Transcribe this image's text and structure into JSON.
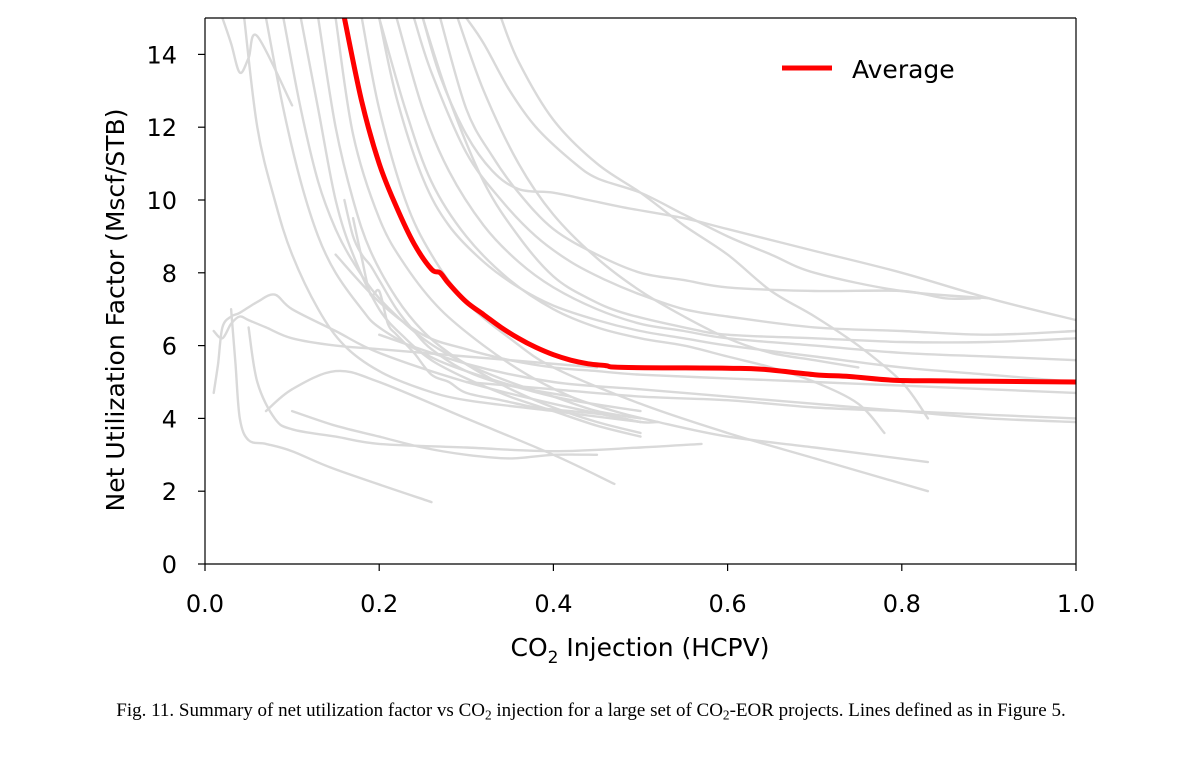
{
  "chart_data": {
    "type": "line",
    "title": "",
    "xlabel_main": "CO",
    "xlabel_sub": "2",
    "xlabel_rest": " Injection (HCPV)",
    "ylabel": "Net Utilization Factor (Mscf/STB)",
    "xlim": [
      0.0,
      1.0
    ],
    "ylim": [
      0,
      15
    ],
    "x_ticks": [
      "0.0",
      "0.2",
      "0.4",
      "0.6",
      "0.8",
      "1.0"
    ],
    "y_ticks": [
      "0",
      "2",
      "4",
      "6",
      "8",
      "10",
      "12",
      "14"
    ],
    "legend": [
      {
        "name": "Average",
        "color": "#ff0000"
      }
    ],
    "average": {
      "name": "Average",
      "color": "#ff0000",
      "x": [
        0.16,
        0.18,
        0.2,
        0.22,
        0.24,
        0.26,
        0.27,
        0.28,
        0.3,
        0.32,
        0.34,
        0.36,
        0.38,
        0.4,
        0.42,
        0.44,
        0.46,
        0.48,
        0.6,
        0.64,
        0.7,
        0.74,
        0.79,
        0.85,
        0.9,
        1.0
      ],
      "y": [
        15.0,
        12.7,
        11.0,
        9.8,
        8.8,
        8.1,
        8.0,
        7.7,
        7.2,
        6.85,
        6.5,
        6.2,
        5.95,
        5.75,
        5.6,
        5.5,
        5.45,
        5.4,
        5.38,
        5.35,
        5.2,
        5.15,
        5.05,
        5.03,
        5.02,
        5.0
      ]
    },
    "series_color": "#d9d9d9",
    "series": [
      {
        "x": [
          0.03,
          0.035,
          0.04,
          0.05,
          0.07,
          0.1,
          0.15,
          0.26
        ],
        "y": [
          7.0,
          5.5,
          4.0,
          3.4,
          3.3,
          3.1,
          2.6,
          1.7
        ]
      },
      {
        "x": [
          0.01,
          0.02,
          0.03,
          0.04,
          0.05,
          0.07,
          0.1,
          0.15,
          0.2,
          0.3,
          0.45
        ],
        "y": [
          6.4,
          6.2,
          6.6,
          6.8,
          6.7,
          6.5,
          6.2,
          6.0,
          5.9,
          5.7,
          5.4
        ]
      },
      {
        "x": [
          0.01,
          0.015,
          0.02,
          0.03,
          0.04,
          0.06,
          0.08,
          0.1,
          0.15,
          0.2,
          0.3,
          0.4,
          0.5
        ],
        "y": [
          4.7,
          5.5,
          6.5,
          6.8,
          6.9,
          7.2,
          7.4,
          7.0,
          6.4,
          5.8,
          5.0,
          4.4,
          3.9
        ]
      },
      {
        "x": [
          0.07,
          0.1,
          0.15,
          0.2,
          0.3,
          0.4,
          0.47
        ],
        "y": [
          4.2,
          4.8,
          5.3,
          5.0,
          4.0,
          3.0,
          2.2
        ]
      },
      {
        "x": [
          0.05,
          0.06,
          0.08,
          0.1,
          0.15,
          0.2,
          0.3,
          0.4,
          0.5,
          0.57
        ],
        "y": [
          6.5,
          5.0,
          4.0,
          3.7,
          3.5,
          3.3,
          3.2,
          3.1,
          3.2,
          3.3
        ]
      },
      {
        "x": [
          0.02,
          0.03,
          0.04,
          0.05,
          0.06,
          0.1
        ],
        "y": [
          15,
          14.3,
          13.5,
          13.9,
          14.5,
          12.6
        ]
      },
      {
        "x": [
          0.045,
          0.06,
          0.08,
          0.1,
          0.13,
          0.16,
          0.2,
          0.25,
          0.3,
          0.4,
          0.5
        ],
        "y": [
          15,
          12.0,
          10.0,
          8.5,
          7.0,
          6.0,
          5.3,
          4.8,
          4.5,
          4.2,
          3.9
        ]
      },
      {
        "x": [
          0.07,
          0.09,
          0.11,
          0.13,
          0.15,
          0.18,
          0.2,
          0.25,
          0.3,
          0.4,
          0.5
        ],
        "y": [
          15,
          12.5,
          10.5,
          9.0,
          8.0,
          7.0,
          6.5,
          5.8,
          5.3,
          4.6,
          4.2
        ]
      },
      {
        "x": [
          0.09,
          0.11,
          0.13,
          0.15,
          0.17,
          0.2,
          0.25,
          0.3,
          0.35,
          0.4,
          0.45,
          0.5
        ],
        "y": [
          15,
          12.5,
          10.5,
          9.2,
          8.3,
          7.3,
          6.2,
          5.5,
          5.0,
          4.6,
          4.2,
          4.0
        ]
      },
      {
        "x": [
          0.11,
          0.13,
          0.15,
          0.17,
          0.2,
          0.23,
          0.26,
          0.3,
          0.35,
          0.4,
          0.45,
          0.5
        ],
        "y": [
          15,
          12.5,
          10.0,
          8.5,
          7.0,
          6.2,
          5.6,
          5.1,
          4.6,
          4.2,
          3.8,
          3.5
        ]
      },
      {
        "x": [
          0.13,
          0.15,
          0.17,
          0.19,
          0.22,
          0.25,
          0.28,
          0.32,
          0.36,
          0.4,
          0.45,
          0.5
        ],
        "y": [
          15,
          12.0,
          10.0,
          8.6,
          7.3,
          6.4,
          5.8,
          5.2,
          4.7,
          4.3,
          3.9,
          3.6
        ]
      },
      {
        "x": [
          0.17,
          0.18,
          0.19,
          0.2,
          0.21,
          0.22,
          0.24,
          0.26,
          0.28,
          0.3,
          0.34,
          0.38,
          0.42,
          0.46,
          0.5,
          0.52
        ],
        "y": [
          9.5,
          8.4,
          7.4,
          7.5,
          6.6,
          6.3,
          5.8,
          5.2,
          5.0,
          4.7,
          4.5,
          4.3,
          4.2,
          4.1,
          3.9,
          3.9
        ]
      },
      {
        "x": [
          0.16,
          0.17,
          0.18,
          0.19,
          0.2,
          0.22,
          0.24,
          0.26,
          0.3,
          0.35,
          0.42
        ],
        "y": [
          10.0,
          9.0,
          8.5,
          8.2,
          7.8,
          7.0,
          6.4,
          5.9,
          5.3,
          4.9,
          4.6
        ]
      },
      {
        "x": [
          0.15,
          0.17,
          0.2,
          0.23,
          0.27,
          0.32,
          0.37,
          0.42,
          0.47,
          0.52,
          0.6,
          0.7,
          0.83
        ],
        "y": [
          15,
          11.8,
          9.5,
          8.2,
          7.0,
          6.0,
          5.2,
          4.6,
          4.2,
          3.9,
          3.5,
          3.2,
          2.8
        ]
      },
      {
        "x": [
          0.18,
          0.2,
          0.23,
          0.26,
          0.3,
          0.35,
          0.4,
          0.5,
          0.6,
          0.7,
          0.83
        ],
        "y": [
          15,
          12.5,
          10.0,
          8.5,
          7.2,
          6.2,
          5.4,
          4.4,
          3.6,
          2.9,
          2.0
        ]
      },
      {
        "x": [
          0.2,
          0.22,
          0.25,
          0.28,
          0.32,
          0.36,
          0.4,
          0.45,
          0.5,
          0.55,
          0.6,
          0.7,
          0.8,
          0.9,
          1.0
        ],
        "y": [
          15,
          12.8,
          10.6,
          9.3,
          8.3,
          7.6,
          7.1,
          6.7,
          6.4,
          6.2,
          6.0,
          5.7,
          5.4,
          5.2,
          5.0
        ]
      },
      {
        "x": [
          0.22,
          0.25,
          0.28,
          0.32,
          0.36,
          0.4,
          0.45,
          0.5,
          0.55,
          0.6,
          0.7,
          0.8,
          0.9,
          1.0
        ],
        "y": [
          15,
          12.5,
          10.8,
          9.3,
          8.3,
          7.6,
          7.0,
          6.6,
          6.4,
          6.2,
          6.0,
          5.8,
          5.7,
          5.6
        ]
      },
      {
        "x": [
          0.24,
          0.26,
          0.3,
          0.34,
          0.38,
          0.42,
          0.46,
          0.5,
          0.55,
          0.6,
          0.7,
          0.8,
          0.9,
          1.0
        ],
        "y": [
          15,
          13.5,
          11.3,
          10.0,
          9.0,
          8.3,
          7.8,
          7.4,
          7.0,
          6.8,
          6.5,
          6.4,
          6.3,
          6.4
        ]
      },
      {
        "x": [
          0.25,
          0.27,
          0.3,
          0.33,
          0.36,
          0.4,
          0.44,
          0.48,
          0.55,
          0.6,
          0.7,
          0.8,
          0.9,
          1.0
        ],
        "y": [
          15,
          13.4,
          11.8,
          10.8,
          10.3,
          10.2,
          10.0,
          9.8,
          9.5,
          9.2,
          8.6,
          8.0,
          7.3,
          6.7
        ]
      },
      {
        "x": [
          0.3,
          0.32,
          0.35,
          0.38,
          0.42,
          0.45,
          0.5,
          0.55,
          0.6,
          0.65,
          0.7,
          0.8,
          0.9
        ],
        "y": [
          15,
          14.3,
          13.0,
          12.0,
          11.1,
          10.6,
          10.2,
          9.6,
          9.0,
          8.5,
          8.0,
          7.5,
          7.3
        ]
      },
      {
        "x": [
          0.27,
          0.3,
          0.33,
          0.36,
          0.4,
          0.45,
          0.5,
          0.55,
          0.6,
          0.7,
          0.8,
          0.85,
          0.89
        ],
        "y": [
          15,
          12.5,
          11.2,
          10.2,
          9.2,
          8.5,
          8.0,
          7.8,
          7.6,
          7.5,
          7.5,
          7.3,
          7.3
        ]
      },
      {
        "x": [
          0.25,
          0.28,
          0.32,
          0.36,
          0.4,
          0.44,
          0.48,
          0.55,
          0.6,
          0.7,
          0.8,
          0.9,
          1.0
        ],
        "y": [
          15,
          12.8,
          10.5,
          9.0,
          7.9,
          7.3,
          6.9,
          6.5,
          6.3,
          6.2,
          6.1,
          6.1,
          6.2
        ]
      },
      {
        "x": [
          0.34,
          0.36,
          0.4,
          0.45,
          0.5,
          0.55,
          0.6,
          0.65,
          0.7,
          0.75,
          0.8,
          0.83
        ],
        "y": [
          15,
          13.8,
          12.2,
          11.0,
          10.2,
          9.3,
          8.5,
          7.5,
          6.8,
          6.0,
          5.0,
          4.0
        ]
      },
      {
        "x": [
          0.2,
          0.23,
          0.26,
          0.3,
          0.35,
          0.4,
          0.45,
          0.5,
          0.55,
          0.6,
          0.65,
          0.7,
          0.75,
          0.78
        ],
        "y": [
          15,
          12.5,
          10.5,
          9.0,
          7.8,
          7.0,
          6.5,
          6.2,
          6.0,
          5.7,
          5.4,
          5.0,
          4.4,
          3.6
        ]
      },
      {
        "x": [
          0.29,
          0.32,
          0.36,
          0.4,
          0.45,
          0.5,
          0.55,
          0.6,
          0.65,
          0.7,
          0.75
        ],
        "y": [
          15,
          13.0,
          11.0,
          9.6,
          8.4,
          7.5,
          6.8,
          6.2,
          5.8,
          5.6,
          5.4
        ]
      },
      {
        "x": [
          0.3,
          0.35,
          0.4,
          0.5,
          0.6,
          0.7,
          0.8,
          0.9,
          1.0
        ],
        "y": [
          5.0,
          4.9,
          4.8,
          4.6,
          4.5,
          4.3,
          4.2,
          4.1,
          4.0
        ]
      },
      {
        "x": [
          0.15,
          0.2,
          0.25,
          0.3,
          0.35,
          0.4,
          0.45,
          0.5,
          0.6,
          0.7,
          0.8,
          0.9,
          1.0
        ],
        "y": [
          8.5,
          7.2,
          6.3,
          5.9,
          5.6,
          5.4,
          5.3,
          5.2,
          5.1,
          5.0,
          4.9,
          4.8,
          4.7
        ]
      },
      {
        "x": [
          0.2,
          0.3,
          0.4,
          0.5,
          0.6,
          0.7,
          0.8,
          0.9,
          1.0
        ],
        "y": [
          6.3,
          5.5,
          5.0,
          4.8,
          4.6,
          4.4,
          4.2,
          4.0,
          3.9
        ]
      },
      {
        "x": [
          0.1,
          0.15,
          0.2,
          0.25,
          0.3,
          0.35,
          0.4,
          0.45
        ],
        "y": [
          4.2,
          3.8,
          3.5,
          3.2,
          3.0,
          2.9,
          3.0,
          3.0
        ]
      }
    ]
  },
  "caption": {
    "lead": "Fig. 11. Summary of net utilization factor vs CO",
    "sub1": "2",
    "mid": " injection for a large set of CO",
    "sub2": "2",
    "tail": "-EOR projects. Lines defined as in Figure 5."
  }
}
